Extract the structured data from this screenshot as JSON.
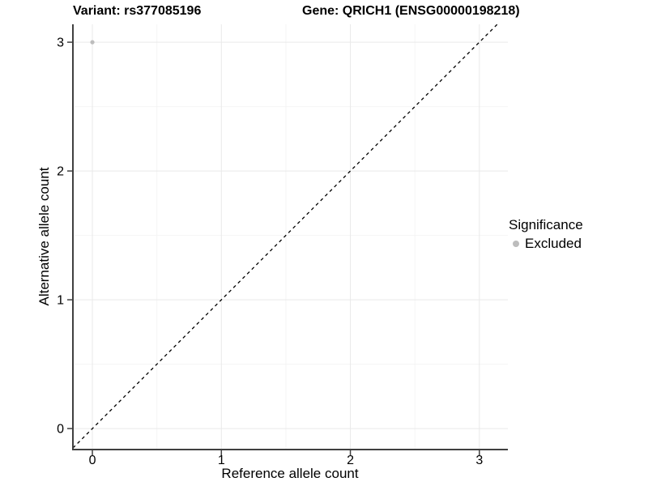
{
  "chart_data": {
    "type": "scatter",
    "title_variant": "Variant: rs377085196",
    "title_gene": "Gene: QRICH1 (ENSG00000198218)",
    "xlabel": "Reference allele count",
    "ylabel": "Alternative allele count",
    "x_ticks": [
      0,
      1,
      2,
      3
    ],
    "y_ticks": [
      0,
      1,
      2,
      3
    ],
    "x_minor": [
      0.5,
      1.5,
      2.5
    ],
    "y_minor": [
      0.5,
      1.5,
      2.5
    ],
    "xlim": [
      -0.151,
      3.221
    ],
    "ylim": [
      -0.163,
      3.139
    ],
    "grid": "major+minor",
    "legend_position": "right",
    "points": [
      {
        "x": 0,
        "y": 3,
        "significance": "Excluded"
      }
    ],
    "reference_line": {
      "type": "identity",
      "style": "dashed",
      "color": "#000000"
    },
    "legend": {
      "title": "Significance",
      "items": [
        {
          "label": "Excluded",
          "color": "#bdbdbd"
        }
      ]
    },
    "colors": {
      "point": "#bdbdbd",
      "grid_major": "#e9e9e9",
      "grid_minor": "#f4f4f4",
      "axis": "#404040",
      "text": "#000000"
    }
  }
}
